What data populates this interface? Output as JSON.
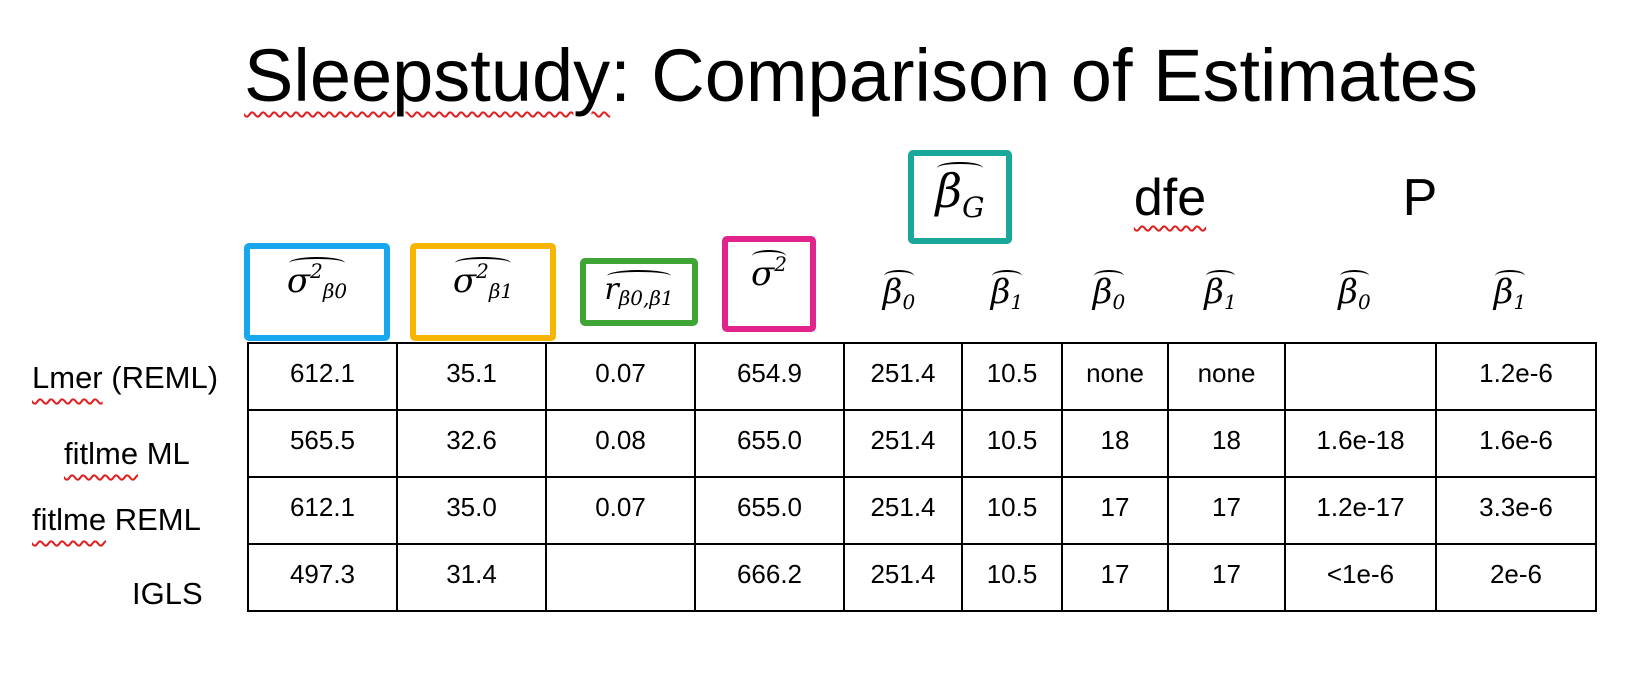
{
  "title": {
    "prefix": "Sleepstudy",
    "rest": ": Comparison of Estimates"
  },
  "groups": {
    "betaG": "β̂G",
    "dfe": "dfe",
    "p": "P"
  },
  "columns": [
    {
      "sym": "σ",
      "sup": "2",
      "sub": "β0",
      "box_color": "#17a7ee"
    },
    {
      "sym": "σ",
      "sup": "2",
      "sub": "β1",
      "box_color": "#f7b500"
    },
    {
      "sym": "r",
      "sup": "",
      "sub": "β0,β1",
      "box_color": "#3fa535"
    },
    {
      "sym": "σ",
      "sup": "2",
      "sub": "",
      "box_color": "#e2238b"
    },
    {
      "sym": "β",
      "sup": "",
      "sub": "0"
    },
    {
      "sym": "β",
      "sup": "",
      "sub": "1"
    },
    {
      "sym": "β",
      "sup": "",
      "sub": "0"
    },
    {
      "sym": "β",
      "sup": "",
      "sub": "1"
    },
    {
      "sym": "β",
      "sup": "",
      "sub": "0"
    },
    {
      "sym": "β",
      "sup": "",
      "sub": "1"
    }
  ],
  "betaG_box_color": "#1aa89a",
  "rows": [
    {
      "label": "Lmer (REML)",
      "squiggle": "Lmer",
      "rest": " (REML)",
      "cells": [
        "612.1",
        "35.1",
        "0.07",
        "654.9",
        "251.4",
        "10.5",
        "none",
        "none",
        "",
        "1.2e-6"
      ]
    },
    {
      "label": "fitlme ML",
      "squiggle": "fitlme",
      "rest": " ML",
      "cells": [
        "565.5",
        "32.6",
        "0.08",
        "655.0",
        "251.4",
        "10.5",
        "18",
        "18",
        "1.6e-18",
        "1.6e-6"
      ]
    },
    {
      "label": "fitlme REML",
      "squiggle": "fitlme",
      "rest": " REML",
      "cells": [
        "612.1",
        "35.0",
        "0.07",
        "655.0",
        "251.4",
        "10.5",
        "17",
        "17",
        "1.2e-17",
        "3.3e-6"
      ]
    },
    {
      "label": "IGLS",
      "squiggle": "",
      "rest": "IGLS",
      "cells": [
        "497.3",
        "31.4",
        "",
        "666.2",
        "251.4",
        "10.5",
        "17",
        "17",
        "<1e-6",
        "2e-6"
      ]
    }
  ]
}
